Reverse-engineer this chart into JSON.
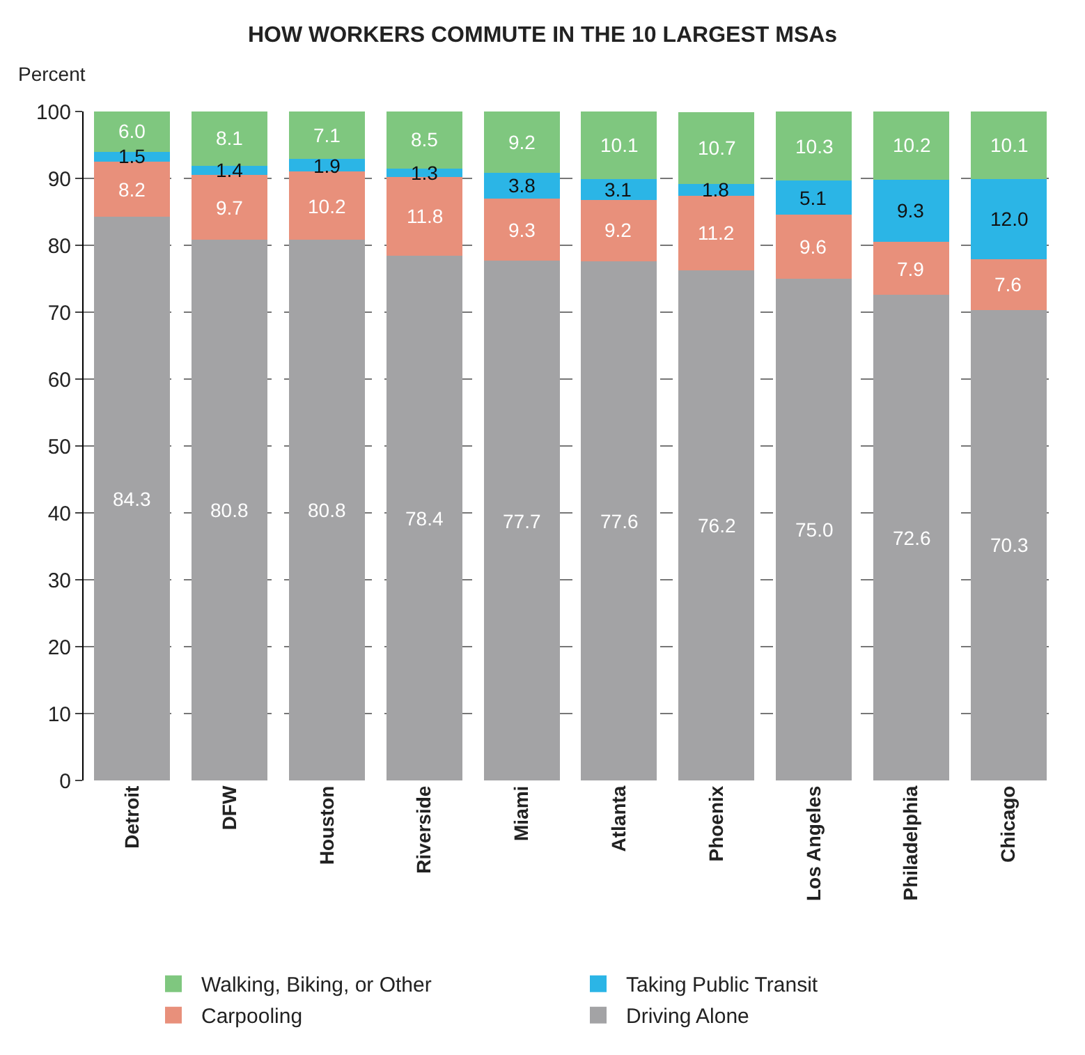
{
  "chart_data": {
    "type": "bar",
    "stacked": true,
    "title": "HOW WORKERS COMMUTE IN THE 10 LARGEST MSAs",
    "ylabel": "Percent",
    "categories": [
      "Detroit",
      "DFW",
      "Houston",
      "Riverside",
      "Miami",
      "Atlanta",
      "Phoenix",
      "Los Angeles",
      "Philadelphia",
      "Chicago"
    ],
    "series": [
      {
        "name": "Driving Alone",
        "color": "#a3a3a5",
        "values": [
          84.3,
          80.8,
          80.8,
          78.4,
          77.7,
          77.6,
          76.2,
          75.0,
          72.6,
          70.3
        ],
        "value_labels": [
          "84.3",
          "80.8",
          "80.8",
          "78.4",
          "77.7",
          "77.6",
          "76.2",
          "75.0",
          "72.6",
          "70.3"
        ]
      },
      {
        "name": "Carpooling",
        "color": "#e8907b",
        "values": [
          8.2,
          9.7,
          10.2,
          11.8,
          9.3,
          9.2,
          11.2,
          9.6,
          7.9,
          7.6
        ],
        "value_labels": [
          "8.2",
          "9.7",
          "10.2",
          "11.8",
          "9.3",
          "9.2",
          "11.2",
          "9.6",
          "7.9",
          "7.6"
        ]
      },
      {
        "name": "Taking Public Transit",
        "color": "#2bb5e6",
        "values": [
          1.5,
          1.4,
          1.9,
          1.3,
          3.8,
          3.1,
          1.8,
          5.1,
          9.3,
          12.0
        ],
        "value_labels": [
          "1.5",
          "1.4",
          "1.9",
          "1.3",
          "3.8",
          "3.1",
          "1.8",
          "5.1",
          "9.3",
          "12.0"
        ]
      },
      {
        "name": "Walking, Biking, or Other",
        "color": "#7fc77f",
        "values": [
          6.0,
          8.1,
          7.1,
          8.5,
          9.2,
          10.1,
          10.7,
          10.3,
          10.2,
          10.1
        ],
        "value_labels": [
          "6.0",
          "8.1",
          "7.1",
          "8.5",
          "9.2",
          "10.1",
          "10.7",
          "10.3",
          "10.2",
          "10.1"
        ]
      }
    ],
    "ylim": [
      0,
      100
    ],
    "yticks": [
      0,
      10,
      20,
      30,
      40,
      50,
      60,
      70,
      80,
      90,
      100
    ],
    "grid": "y",
    "legend": "bottom"
  }
}
